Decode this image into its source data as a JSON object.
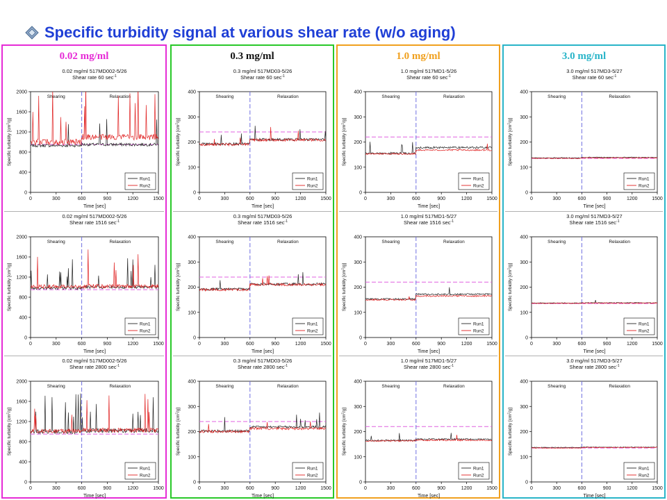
{
  "slide": {
    "title": "Specific turbidity signal at various shear rate (w/o aging)",
    "title_color": "#1f3fd6",
    "bullet_icon": "diamond-bullet-icon"
  },
  "columns": [
    {
      "label": "0.02 mg/ml",
      "border_color": "#e62bd6",
      "label_color": "#e62bd6"
    },
    {
      "label": "0.3 mg/ml",
      "border_color": "#28c828",
      "label_color": "#111111"
    },
    {
      "label": "1.0 mg/ml",
      "border_color": "#f0a01e",
      "label_color": "#f0a01e"
    },
    {
      "label": "3.0 mg/ml",
      "border_color": "#28b4c8",
      "label_color": "#28b4c8"
    }
  ],
  "chart_data": [
    {
      "type": "line",
      "row": 0,
      "col": 0,
      "title": [
        "0.02 mg/ml 517MD002-5/26",
        "Shear rate 60 sec"
      ],
      "title_sup": "-1",
      "xlabel": "Time [sec]",
      "ylabel": "Specific turbidity [cm",
      "ylabel_sup": "2",
      "ylabel_tail": "/g]",
      "xlim": [
        0,
        1500
      ],
      "ylim": [
        0,
        2000
      ],
      "xticks": [
        0,
        300,
        600,
        900,
        1200,
        1500
      ],
      "yticks": [
        0,
        400,
        800,
        1200,
        1600,
        2000
      ],
      "region_labels": [
        "Shearing",
        "Relaxation"
      ],
      "divider_x": 600,
      "reference_y": 950,
      "series": [
        {
          "name": "Run1",
          "color": "#222222",
          "base_before": 930,
          "base_after": 950,
          "noise": 30,
          "spikes": 4
        },
        {
          "name": "Run2",
          "color": "#e02020",
          "base_before": 1000,
          "base_after": 1100,
          "noise": 60,
          "spikes": 14
        }
      ]
    },
    {
      "type": "line",
      "row": 0,
      "col": 1,
      "title": [
        "0.3 mg/ml 517MD03-5/26",
        "Shear rate 60 sec"
      ],
      "title_sup": "-1",
      "xlabel": "Time [sec]",
      "ylabel": "Specific turbidity [cm",
      "ylabel_sup": "2",
      "ylabel_tail": "/g]",
      "xlim": [
        0,
        1500
      ],
      "ylim": [
        0,
        400
      ],
      "xticks": [
        0,
        300,
        600,
        900,
        1200,
        1500
      ],
      "yticks": [
        0,
        100,
        200,
        300,
        400
      ],
      "region_labels": [
        "Shearing",
        "Relaxation"
      ],
      "divider_x": 600,
      "reference_y": 240,
      "series": [
        {
          "name": "Run1",
          "color": "#222222",
          "base_before": 192,
          "base_after": 210,
          "noise": 5,
          "spikes": 5
        },
        {
          "name": "Run2",
          "color": "#e02020",
          "base_before": 190,
          "base_after": 208,
          "noise": 5,
          "spikes": 4
        }
      ]
    },
    {
      "type": "line",
      "row": 0,
      "col": 2,
      "title": [
        "1.0 mg/ml 517MD1-5/26",
        "Shear rate 60 sec"
      ],
      "title_sup": "-1",
      "xlabel": "Time [sec]",
      "ylabel": "Specific turbidity [cm",
      "ylabel_sup": "2",
      "ylabel_tail": "/g]",
      "xlim": [
        0,
        1500
      ],
      "ylim": [
        0,
        400
      ],
      "xticks": [
        0,
        300,
        600,
        900,
        1200,
        1500
      ],
      "yticks": [
        0,
        100,
        200,
        300,
        400
      ],
      "region_labels": [
        "Shearing",
        "Relaxation"
      ],
      "divider_x": 600,
      "reference_y": 220,
      "series": [
        {
          "name": "Run1",
          "color": "#222222",
          "base_before": 155,
          "base_after": 178,
          "noise": 4,
          "spikes": 4
        },
        {
          "name": "Run2",
          "color": "#e02020",
          "base_before": 153,
          "base_after": 168,
          "noise": 3,
          "spikes": 1
        }
      ]
    },
    {
      "type": "line",
      "row": 0,
      "col": 3,
      "title": [
        "3.0 mg/ml 517MD3-5/27",
        "Shear rate 60 sec"
      ],
      "title_sup": "-1",
      "xlabel": "Time [sec]",
      "ylabel": "Specific turbidity [cm",
      "ylabel_sup": "2",
      "ylabel_tail": "/g]",
      "xlim": [
        0,
        1500
      ],
      "ylim": [
        0,
        400
      ],
      "xticks": [
        0,
        300,
        600,
        900,
        1200,
        1500
      ],
      "yticks": [
        0,
        100,
        200,
        300,
        400
      ],
      "region_labels": [
        "Shearing",
        "Relaxation"
      ],
      "divider_x": 600,
      "reference_y": 135,
      "series": [
        {
          "name": "Run1",
          "color": "#222222",
          "base_before": 137,
          "base_after": 139,
          "noise": 1.5,
          "spikes": 0
        },
        {
          "name": "Run2",
          "color": "#e02020",
          "base_before": 135,
          "base_after": 137,
          "noise": 1.5,
          "spikes": 0
        }
      ]
    },
    {
      "type": "line",
      "row": 1,
      "col": 0,
      "title": [
        "0.02 mg/ml 517MD002-5/26",
        "Shear rate 1516 sec"
      ],
      "title_sup": "-1",
      "xlabel": "Time [sec]",
      "ylabel": "Specific turbidity [cm",
      "ylabel_sup": "2",
      "ylabel_tail": "/g]",
      "xlim": [
        0,
        1500
      ],
      "ylim": [
        0,
        2000
      ],
      "xticks": [
        0,
        300,
        600,
        900,
        1200,
        1500
      ],
      "yticks": [
        0,
        400,
        800,
        1200,
        1600,
        2000
      ],
      "region_labels": [
        "Shearing",
        "Relaxation"
      ],
      "divider_x": 600,
      "reference_y": 950,
      "series": [
        {
          "name": "Run1",
          "color": "#222222",
          "base_before": 980,
          "base_after": 1000,
          "noise": 30,
          "spikes": 14
        },
        {
          "name": "Run2",
          "color": "#e02020",
          "base_before": 1010,
          "base_after": 1020,
          "noise": 40,
          "spikes": 6
        }
      ]
    },
    {
      "type": "line",
      "row": 1,
      "col": 1,
      "title": [
        "0.3 mg/ml 517MD03-5/26",
        "Shear rate 1516 sec"
      ],
      "title_sup": "-1",
      "xlabel": "Time [sec]",
      "ylabel": "Specific turbidity [cm",
      "ylabel_sup": "2",
      "ylabel_tail": "/g]",
      "xlim": [
        0,
        1500
      ],
      "ylim": [
        0,
        400
      ],
      "xticks": [
        0,
        300,
        600,
        900,
        1200,
        1500
      ],
      "yticks": [
        0,
        100,
        200,
        300,
        400
      ],
      "region_labels": [
        "Shearing",
        "Relaxation"
      ],
      "divider_x": 600,
      "reference_y": 240,
      "series": [
        {
          "name": "Run1",
          "color": "#222222",
          "base_before": 192,
          "base_after": 212,
          "noise": 5,
          "spikes": 3
        },
        {
          "name": "Run2",
          "color": "#e02020",
          "base_before": 190,
          "base_after": 210,
          "noise": 5,
          "spikes": 3
        }
      ]
    },
    {
      "type": "line",
      "row": 1,
      "col": 2,
      "title": [
        "1.0 mg/ml 517MD1-5/27",
        "Shear rate 1516 sec"
      ],
      "title_sup": "-1",
      "xlabel": "Time [sec]",
      "ylabel": "Specific turbidity [cm",
      "ylabel_sup": "2",
      "ylabel_tail": "/g]",
      "xlim": [
        0,
        1500
      ],
      "ylim": [
        0,
        400
      ],
      "xticks": [
        0,
        300,
        600,
        900,
        1200,
        1500
      ],
      "yticks": [
        0,
        100,
        200,
        300,
        400
      ],
      "region_labels": [
        "Shearing",
        "Relaxation"
      ],
      "divider_x": 600,
      "reference_y": 220,
      "series": [
        {
          "name": "Run1",
          "color": "#222222",
          "base_before": 153,
          "base_after": 172,
          "noise": 3,
          "spikes": 1
        },
        {
          "name": "Run2",
          "color": "#e02020",
          "base_before": 150,
          "base_after": 165,
          "noise": 3,
          "spikes": 1
        }
      ]
    },
    {
      "type": "line",
      "row": 1,
      "col": 3,
      "title": [
        "3.0 mg/ml 517MD3-5/27",
        "Shear rate 1516 sec"
      ],
      "title_sup": "-1",
      "xlabel": "Time [sec]",
      "ylabel": "Specific turbidity [cm",
      "ylabel_sup": "2",
      "ylabel_tail": "/g]",
      "xlim": [
        0,
        1500
      ],
      "ylim": [
        0,
        400
      ],
      "xticks": [
        0,
        300,
        600,
        900,
        1200,
        1500
      ],
      "yticks": [
        0,
        100,
        200,
        300,
        400
      ],
      "region_labels": [
        "Shearing",
        "Relaxation"
      ],
      "divider_x": 600,
      "reference_y": 135,
      "series": [
        {
          "name": "Run1",
          "color": "#222222",
          "base_before": 137,
          "base_after": 138,
          "noise": 1.5,
          "spikes": 1
        },
        {
          "name": "Run2",
          "color": "#e02020",
          "base_before": 136,
          "base_after": 137,
          "noise": 1.5,
          "spikes": 0
        }
      ]
    },
    {
      "type": "line",
      "row": 2,
      "col": 0,
      "title": [
        "0.02 mg/ml 517MD002-5/26",
        "Shear rate 2800 sec"
      ],
      "title_sup": "-1",
      "xlabel": "Time [sec]",
      "ylabel": "Specific turbidity [cm",
      "ylabel_sup": "2",
      "ylabel_tail": "/g]",
      "xlim": [
        0,
        1500
      ],
      "ylim": [
        0,
        2000
      ],
      "xticks": [
        0,
        300,
        600,
        900,
        1200,
        1500
      ],
      "yticks": [
        0,
        400,
        800,
        1200,
        1600,
        2000
      ],
      "region_labels": [
        "Shearing",
        "Relaxation"
      ],
      "divider_x": 600,
      "reference_y": 950,
      "series": [
        {
          "name": "Run1",
          "color": "#222222",
          "base_before": 1000,
          "base_after": 1020,
          "noise": 40,
          "spikes": 16
        },
        {
          "name": "Run2",
          "color": "#e02020",
          "base_before": 1010,
          "base_after": 1030,
          "noise": 45,
          "spikes": 8
        }
      ]
    },
    {
      "type": "line",
      "row": 2,
      "col": 1,
      "title": [
        "0.3 mg/ml 517MD03-5/26",
        "Shear rate 2800 sec"
      ],
      "title_sup": "-1",
      "xlabel": "Time [sec]",
      "ylabel": "Specific turbidity [cm",
      "ylabel_sup": "2",
      "ylabel_tail": "/g]",
      "xlim": [
        0,
        1500
      ],
      "ylim": [
        0,
        400
      ],
      "xticks": [
        0,
        300,
        600,
        900,
        1200,
        1500
      ],
      "yticks": [
        0,
        100,
        200,
        300,
        400
      ],
      "region_labels": [
        "Shearing",
        "Relaxation"
      ],
      "divider_x": 600,
      "reference_y": 240,
      "series": [
        {
          "name": "Run1",
          "color": "#222222",
          "base_before": 202,
          "base_after": 218,
          "noise": 5,
          "spikes": 6
        },
        {
          "name": "Run2",
          "color": "#e02020",
          "base_before": 200,
          "base_after": 212,
          "noise": 5,
          "spikes": 3
        }
      ]
    },
    {
      "type": "line",
      "row": 2,
      "col": 2,
      "title": [
        "1.0 mg/ml 517MD1-5/27",
        "Shear rate 2800 sec"
      ],
      "title_sup": "-1",
      "xlabel": "Time [sec]",
      "ylabel": "Specific turbidity [cm",
      "ylabel_sup": "2",
      "ylabel_tail": "/g]",
      "xlim": [
        0,
        1500
      ],
      "ylim": [
        0,
        400
      ],
      "xticks": [
        0,
        300,
        600,
        900,
        1200,
        1500
      ],
      "yticks": [
        0,
        100,
        200,
        300,
        400
      ],
      "region_labels": [
        "Shearing",
        "Relaxation"
      ],
      "divider_x": 600,
      "reference_y": 220,
      "series": [
        {
          "name": "Run1",
          "color": "#222222",
          "base_before": 165,
          "base_after": 170,
          "noise": 3,
          "spikes": 3
        },
        {
          "name": "Run2",
          "color": "#e02020",
          "base_before": 163,
          "base_after": 166,
          "noise": 3,
          "spikes": 1
        }
      ]
    },
    {
      "type": "line",
      "row": 2,
      "col": 3,
      "title": [
        "3.0 mg/ml 517MD3-5/27",
        "Shear rate 2800 sec"
      ],
      "title_sup": "-1",
      "xlabel": "Time [sec]",
      "ylabel": "Specific turbidity [cm",
      "ylabel_sup": "2",
      "ylabel_tail": "/g]",
      "xlim": [
        0,
        1500
      ],
      "ylim": [
        0,
        400
      ],
      "xticks": [
        0,
        300,
        600,
        900,
        1200,
        1500
      ],
      "yticks": [
        0,
        100,
        200,
        300,
        400
      ],
      "region_labels": [
        "Shearing",
        "Relaxation"
      ],
      "divider_x": 600,
      "reference_y": 135,
      "series": [
        {
          "name": "Run1",
          "color": "#222222",
          "base_before": 137,
          "base_after": 138,
          "noise": 1.5,
          "spikes": 0
        },
        {
          "name": "Run2",
          "color": "#e02020",
          "base_before": 135,
          "base_after": 137,
          "noise": 1.5,
          "spikes": 0
        }
      ]
    }
  ]
}
